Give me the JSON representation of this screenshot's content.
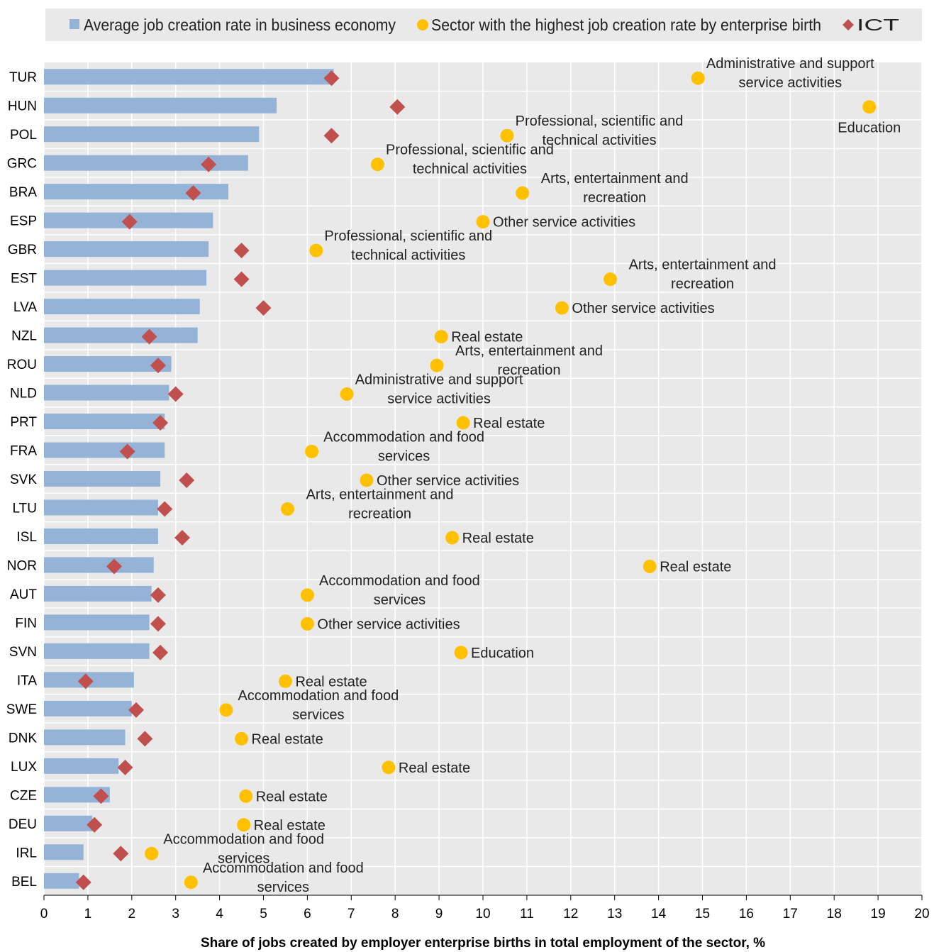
{
  "chart_data": {
    "type": "bar",
    "xlabel": "Share of jobs created by employer enterprise births in total employment of the sector, %",
    "xlim": [
      0,
      20
    ],
    "x_ticks": [
      0,
      1,
      2,
      3,
      4,
      5,
      6,
      7,
      8,
      9,
      10,
      11,
      12,
      13,
      14,
      15,
      16,
      17,
      18,
      19,
      20
    ],
    "grid": true,
    "orientation": "horizontal",
    "legend_position": "top",
    "legend": [
      {
        "name": "Average job creation rate in business economy",
        "marker": "bar",
        "color": "#95b3d7"
      },
      {
        "name": "Sector with the highest job creation rate by enterprise birth",
        "marker": "circle",
        "color": "#ffc000"
      },
      {
        "name": "ICT",
        "marker": "diamond",
        "color": "#c0504d"
      }
    ],
    "rows": [
      {
        "country": "TUR",
        "average": 6.6,
        "ict": 6.55,
        "sector": 14.9,
        "sector_label": [
          "Administrative  and support",
          "service activities"
        ]
      },
      {
        "country": "HUN",
        "average": 5.3,
        "ict": 8.05,
        "sector": 18.8,
        "sector_label": [
          "Education"
        ]
      },
      {
        "country": "POL",
        "average": 4.9,
        "ict": 6.55,
        "sector": 10.55,
        "sector_label": [
          "Professional, scientific  and",
          "technical activities"
        ]
      },
      {
        "country": "GRC",
        "average": 4.65,
        "ict": 3.75,
        "sector": 7.6,
        "sector_label": [
          "Professional, scientific  and",
          "technical activities"
        ]
      },
      {
        "country": "BRA",
        "average": 4.2,
        "ict": 3.4,
        "sector": 10.9,
        "sector_label": [
          "Arts,  entertainment and",
          "recreation"
        ]
      },
      {
        "country": "ESP",
        "average": 3.85,
        "ict": 1.95,
        "sector": 10.0,
        "sector_label": [
          "Other service activities"
        ]
      },
      {
        "country": "GBR",
        "average": 3.75,
        "ict": 4.5,
        "sector": 6.2,
        "sector_label": [
          "Professional, scientific  and",
          "technical activities"
        ]
      },
      {
        "country": "EST",
        "average": 3.7,
        "ict": 4.5,
        "sector": 12.9,
        "sector_label": [
          "Arts,  entertainment and",
          "recreation"
        ]
      },
      {
        "country": "LVA",
        "average": 3.55,
        "ict": 5.0,
        "sector": 11.8,
        "sector_label": [
          "Other service activities"
        ]
      },
      {
        "country": "NZL",
        "average": 3.5,
        "ict": 2.4,
        "sector": 9.05,
        "sector_label": [
          "Real estate"
        ]
      },
      {
        "country": "ROU",
        "average": 2.9,
        "ict": 2.6,
        "sector": 8.95,
        "sector_label": [
          "Arts,  entertainment and",
          "recreation"
        ]
      },
      {
        "country": "NLD",
        "average": 2.85,
        "ict": 3.0,
        "sector": 6.9,
        "sector_label": [
          "Administrative  and support",
          "service activities"
        ]
      },
      {
        "country": "PRT",
        "average": 2.75,
        "ict": 2.65,
        "sector": 9.55,
        "sector_label": [
          "Real estate"
        ]
      },
      {
        "country": "FRA",
        "average": 2.75,
        "ict": 1.9,
        "sector": 6.1,
        "sector_label": [
          "Accommodation and food",
          "services"
        ]
      },
      {
        "country": "SVK",
        "average": 2.65,
        "ict": 3.25,
        "sector": 7.35,
        "sector_label": [
          "Other service activities"
        ]
      },
      {
        "country": "LTU",
        "average": 2.6,
        "ict": 2.75,
        "sector": 5.55,
        "sector_label": [
          "Arts,  entertainment and",
          "recreation"
        ]
      },
      {
        "country": "ISL",
        "average": 2.6,
        "ict": 3.15,
        "sector": 9.3,
        "sector_label": [
          "Real estate"
        ]
      },
      {
        "country": "NOR",
        "average": 2.5,
        "ict": 1.6,
        "sector": 13.8,
        "sector_label": [
          "Real estate"
        ]
      },
      {
        "country": "AUT",
        "average": 2.45,
        "ict": 2.6,
        "sector": 6.0,
        "sector_label": [
          "Accommodation and food",
          "services"
        ]
      },
      {
        "country": "FIN",
        "average": 2.4,
        "ict": 2.6,
        "sector": 6.0,
        "sector_label": [
          "Other service activities"
        ]
      },
      {
        "country": "SVN",
        "average": 2.4,
        "ict": 2.65,
        "sector": 9.5,
        "sector_label": [
          "Education"
        ]
      },
      {
        "country": "ITA",
        "average": 2.05,
        "ict": 0.95,
        "sector": 5.5,
        "sector_label": [
          "Real estate"
        ]
      },
      {
        "country": "SWE",
        "average": 2.0,
        "ict": 2.1,
        "sector": 4.15,
        "sector_label": [
          "Accommodation and food",
          "services"
        ]
      },
      {
        "country": "DNK",
        "average": 1.85,
        "ict": 2.3,
        "sector": 4.5,
        "sector_label": [
          "Real estate"
        ]
      },
      {
        "country": "LUX",
        "average": 1.7,
        "ict": 1.85,
        "sector": 7.85,
        "sector_label": [
          "Real estate"
        ]
      },
      {
        "country": "CZE",
        "average": 1.5,
        "ict": 1.3,
        "sector": 4.6,
        "sector_label": [
          "Real estate"
        ]
      },
      {
        "country": "DEU",
        "average": 1.1,
        "ict": 1.15,
        "sector": 4.55,
        "sector_label": [
          "Real estate"
        ]
      },
      {
        "country": "IRL",
        "average": 0.9,
        "ict": 1.75,
        "sector": 2.45,
        "sector_label": [
          "Accommodation and food",
          "services"
        ]
      },
      {
        "country": "BEL",
        "average": 0.8,
        "ict": 0.9,
        "sector": 3.35,
        "sector_label": [
          "Accommodation and food",
          "services"
        ]
      }
    ]
  }
}
